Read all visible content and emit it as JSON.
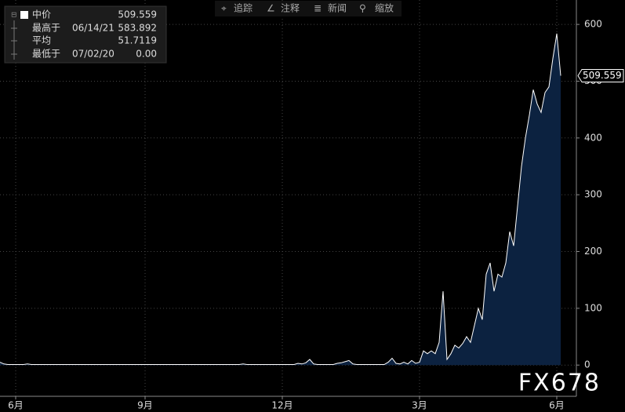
{
  "chart_data": {
    "type": "area",
    "toolbar": [
      "追踪",
      "注释",
      "新闻",
      "缩放"
    ],
    "legend": {
      "high_label": "最高于",
      "high_date": "06/14/21",
      "high_value": "583.892",
      "avg_label": "平均",
      "avg_value": "51.7119",
      "low_label": "最低于",
      "low_date": "07/02/20",
      "low_value": "0.00"
    },
    "watermark": "FX678",
    "series": [
      {
        "name": "中价",
        "color": "#ffffff",
        "fill": "#0c2240",
        "values": [
          5,
          2,
          1,
          1,
          1,
          1,
          1,
          2,
          1,
          1,
          1,
          1,
          1,
          1,
          1,
          1,
          1,
          1,
          1,
          1,
          1,
          1,
          1,
          1,
          1,
          1,
          1,
          1,
          1,
          1,
          1,
          1,
          1,
          1,
          1,
          1,
          1,
          1,
          1,
          1,
          1,
          1,
          1,
          1,
          1,
          1,
          1,
          1,
          1,
          1,
          1,
          1,
          1,
          1,
          1,
          1,
          1,
          1,
          1,
          1,
          1,
          1,
          2,
          1,
          1,
          1,
          1,
          1,
          1,
          1,
          1,
          1,
          1,
          1,
          1,
          1,
          3,
          2,
          4,
          10,
          2,
          1,
          1,
          1,
          1,
          1,
          3,
          4,
          6,
          8,
          2,
          1,
          1,
          1,
          1,
          1,
          1,
          1,
          1,
          5,
          12,
          3,
          2,
          5,
          2,
          8,
          3,
          5,
          25,
          20,
          25,
          20,
          40,
          130,
          10,
          20,
          35,
          30,
          38,
          50,
          40,
          70,
          100,
          80,
          160,
          180,
          130,
          160,
          155,
          180,
          235,
          210,
          280,
          350,
          400,
          440,
          485,
          460,
          445,
          480,
          490,
          540,
          583.892,
          509.559
        ]
      }
    ],
    "xlim": [
      0,
      147
    ],
    "xticks": [
      {
        "value": 4,
        "label": "6月"
      },
      {
        "value": 37,
        "label": "9月"
      },
      {
        "value": 72,
        "label": "12月"
      },
      {
        "value": 107,
        "label": "3月"
      },
      {
        "value": 142,
        "label": "6月"
      }
    ],
    "ylim": [
      -55,
      643
    ],
    "yticks": [
      0,
      100,
      200,
      300,
      400,
      500,
      600
    ],
    "grid": true
  }
}
